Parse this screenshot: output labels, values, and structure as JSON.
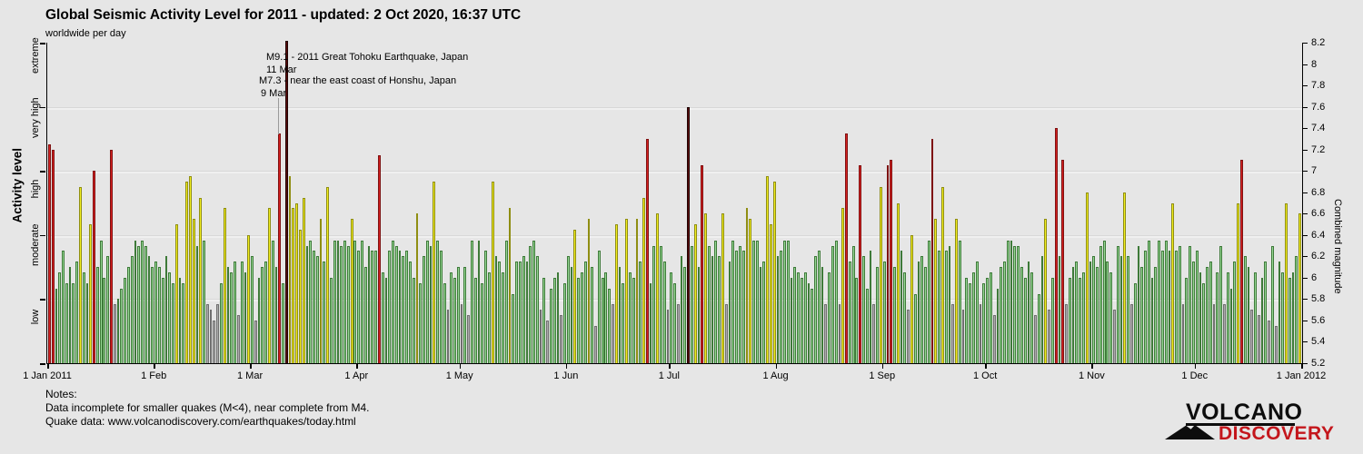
{
  "header": {
    "title": "Global Seismic Activity Level for 2011 - updated:  2 Oct 2020, 16:37 UTC",
    "subtitle": "worldwide per day"
  },
  "left_axis": {
    "label": "Activity level",
    "categories": [
      "extreme",
      "very high",
      "high",
      "moderate",
      "low"
    ]
  },
  "right_axis": {
    "label": "Combined magnitude",
    "tick_labels": [
      "8.2",
      "8",
      "7.8",
      "7.6",
      "7.4",
      "7.2",
      "7",
      "6.8",
      "6.6",
      "6.4",
      "6.2",
      "6",
      "5.8",
      "5.6",
      "5.4",
      "5.2"
    ]
  },
  "annotations": [
    {
      "text": "M9.1 - 2011 Great Tohoku Earthquake, Japan",
      "date_label": "11 Mar"
    },
    {
      "text": "M7.3 - near the east coast of Honshu, Japan",
      "date_label": "9 Mar"
    }
  ],
  "notes": {
    "heading": "Notes:",
    "line1": "Data incomplete for smaller quakes (M<4), near complete from M4.",
    "line2": "Quake data: www.volcanodiscovery.com/earthquakes/today.html"
  },
  "logo": {
    "top": "VOLCANO",
    "bottom": "DISCOVERY"
  },
  "chart_data": {
    "type": "bar",
    "title": "Global Seismic Activity Level for 2011",
    "xlabel": "",
    "ylabel_left": "Activity level",
    "ylabel_right": "Combined magnitude",
    "ylim": [
      5.2,
      8.2
    ],
    "grid_magnitudes": [
      7.6,
      7.0,
      6.4,
      5.8
    ],
    "left_tick_magnitudes": [
      8.2,
      7.6,
      7.0,
      6.4,
      5.8,
      5.2
    ],
    "legend_position": "none",
    "levels": [
      {
        "name": "extreme",
        "min": 7.6,
        "fill": "#5e0d0d",
        "edge": "#1e0303"
      },
      {
        "name": "very high",
        "min": 7.0,
        "fill": "#d92121",
        "edge": "#7e1111"
      },
      {
        "name": "high",
        "min": 6.4,
        "fill": "#f2ee20",
        "edge": "#8f8e12"
      },
      {
        "name": "moderate",
        "min": 5.8,
        "fill": "#97d795",
        "edge": "#3e7a39"
      },
      {
        "name": "low",
        "min": 0.0,
        "fill": "#aeaeae",
        "edge": "#6f6f6f"
      }
    ],
    "x_ticks": {
      "labels": [
        "1 Jan 2011",
        "1 Feb",
        "1 Mar",
        "1 Apr",
        "1 May",
        "1 Jun",
        "1 Jul",
        "1 Aug",
        "1 Sep",
        "1 Oct",
        "1 Nov",
        "1 Dec",
        "1 Jan 2012"
      ],
      "day_offsets": [
        0,
        31,
        59,
        90,
        120,
        151,
        181,
        212,
        243,
        273,
        304,
        334,
        365
      ]
    },
    "start_date": "1 Jan 2011",
    "values": [
      7.25,
      7.2,
      5.9,
      6.05,
      6.25,
      5.95,
      6.1,
      5.95,
      6.15,
      6.85,
      6.05,
      5.95,
      6.5,
      7.0,
      6.1,
      6.35,
      6.0,
      6.2,
      7.2,
      5.75,
      5.8,
      5.9,
      6.0,
      6.1,
      6.2,
      6.35,
      6.3,
      6.35,
      6.3,
      6.2,
      6.1,
      6.15,
      6.1,
      6.0,
      6.2,
      6.05,
      5.95,
      6.5,
      6.0,
      5.95,
      6.9,
      6.95,
      6.55,
      6.3,
      6.75,
      6.35,
      5.75,
      5.7,
      5.6,
      5.75,
      5.95,
      6.65,
      6.1,
      6.05,
      6.15,
      5.65,
      6.15,
      6.05,
      6.4,
      6.2,
      5.6,
      6.0,
      6.1,
      6.15,
      6.65,
      6.35,
      6.1,
      7.35,
      5.95,
      9.1,
      6.95,
      6.65,
      6.7,
      6.45,
      6.75,
      6.3,
      6.35,
      6.25,
      6.2,
      6.55,
      6.15,
      6.85,
      6.0,
      6.35,
      6.35,
      6.3,
      6.35,
      6.3,
      6.55,
      6.35,
      6.25,
      6.35,
      6.1,
      6.3,
      6.25,
      6.25,
      7.15,
      6.05,
      6.0,
      6.25,
      6.35,
      6.3,
      6.25,
      6.2,
      6.25,
      6.15,
      6.0,
      6.6,
      5.95,
      6.2,
      6.35,
      6.3,
      6.9,
      6.35,
      6.25,
      5.95,
      5.7,
      6.05,
      6.0,
      6.1,
      5.75,
      6.1,
      5.65,
      6.35,
      6.0,
      6.35,
      5.95,
      6.25,
      6.05,
      6.9,
      6.2,
      6.15,
      6.05,
      6.35,
      6.65,
      5.85,
      6.15,
      6.15,
      6.2,
      6.15,
      6.3,
      6.35,
      6.2,
      5.7,
      6.0,
      5.6,
      5.9,
      6.0,
      6.05,
      5.65,
      5.95,
      6.2,
      6.1,
      6.45,
      6.0,
      6.05,
      6.15,
      6.55,
      6.1,
      5.55,
      6.25,
      6.0,
      6.05,
      5.9,
      5.75,
      6.5,
      6.1,
      5.95,
      6.55,
      6.05,
      6.0,
      6.55,
      6.15,
      6.75,
      7.3,
      5.95,
      6.3,
      6.6,
      6.3,
      6.15,
      5.7,
      6.05,
      5.95,
      5.75,
      6.2,
      6.1,
      7.6,
      6.3,
      6.5,
      6.1,
      7.05,
      6.6,
      6.3,
      6.2,
      6.35,
      6.2,
      6.6,
      5.75,
      6.15,
      6.35,
      6.25,
      6.3,
      6.25,
      6.65,
      6.55,
      6.35,
      6.35,
      6.1,
      6.15,
      6.95,
      6.5,
      6.9,
      6.2,
      6.25,
      6.35,
      6.35,
      6.0,
      6.1,
      6.05,
      6.0,
      6.05,
      5.95,
      5.9,
      6.2,
      6.25,
      6.1,
      5.75,
      6.05,
      6.3,
      6.35,
      5.75,
      6.65,
      7.35,
      6.15,
      6.3,
      6.0,
      7.05,
      6.2,
      5.9,
      6.25,
      5.75,
      6.1,
      6.85,
      6.15,
      7.05,
      7.1,
      6.1,
      6.7,
      6.25,
      6.05,
      5.7,
      6.4,
      5.85,
      6.15,
      6.2,
      6.1,
      6.35,
      7.3,
      6.55,
      6.25,
      6.85,
      6.25,
      6.3,
      5.75,
      6.55,
      6.35,
      5.7,
      6.0,
      5.95,
      6.05,
      6.15,
      5.75,
      5.95,
      6.0,
      6.05,
      5.65,
      5.9,
      6.1,
      6.15,
      6.35,
      6.35,
      6.3,
      6.3,
      6.1,
      6.0,
      6.15,
      6.05,
      5.65,
      5.85,
      6.2,
      6.55,
      5.7,
      6.0,
      7.4,
      6.2,
      7.1,
      5.75,
      6.0,
      6.1,
      6.15,
      6.0,
      6.05,
      6.8,
      6.15,
      6.2,
      6.1,
      6.3,
      6.35,
      6.15,
      6.05,
      5.7,
      6.3,
      6.2,
      6.8,
      6.2,
      5.75,
      5.95,
      6.3,
      6.1,
      6.25,
      6.35,
      6.0,
      6.1,
      6.35,
      6.25,
      6.35,
      6.25,
      6.7,
      6.25,
      6.3,
      5.75,
      6.0,
      6.3,
      6.15,
      6.25,
      6.05,
      5.95,
      6.1,
      6.15,
      5.75,
      6.05,
      6.3,
      5.75,
      6.05,
      5.9,
      6.15,
      6.7,
      7.1,
      6.2,
      6.1,
      5.7,
      6.05,
      5.65,
      6.0,
      6.15,
      5.6,
      6.3,
      5.55,
      6.15,
      6.05,
      6.7,
      6.0,
      6.05,
      6.2,
      6.6
    ]
  }
}
